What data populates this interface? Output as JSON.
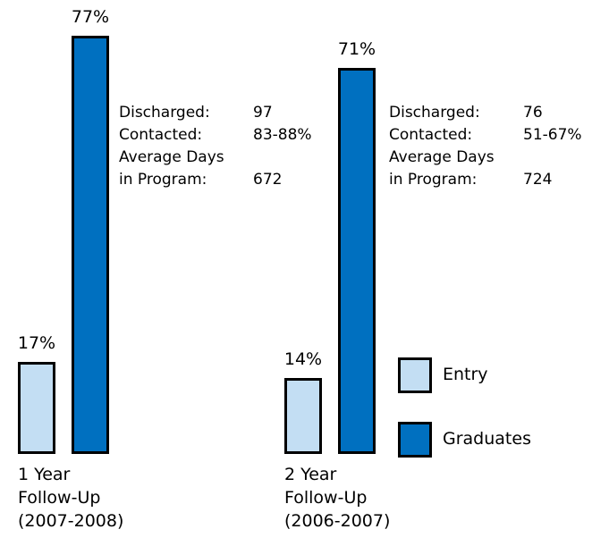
{
  "chart_data": {
    "type": "bar",
    "categories": [
      "1 Year\nFollow-Up\n(2007-2008)",
      "2 Year\nFollow-Up\n(2006-2007)"
    ],
    "series": [
      {
        "name": "Entry",
        "color": "#c3def3",
        "values": [
          17,
          14
        ],
        "value_labels": [
          "17%",
          "14%"
        ]
      },
      {
        "name": "Graduates",
        "color": "#0070c0",
        "values": [
          77,
          71
        ],
        "value_labels": [
          "77%",
          "71%"
        ]
      }
    ],
    "annotations": [
      {
        "rows": [
          [
            "Discharged:",
            "97"
          ],
          [
            "Contacted:",
            "83-88%"
          ],
          [
            "Average Days\nin Program:",
            "672"
          ]
        ]
      },
      {
        "rows": [
          [
            "Discharged:",
            "76"
          ],
          [
            "Contacted:",
            "51-67%"
          ],
          [
            "Average Days\nin Program:",
            "724"
          ]
        ]
      }
    ]
  }
}
